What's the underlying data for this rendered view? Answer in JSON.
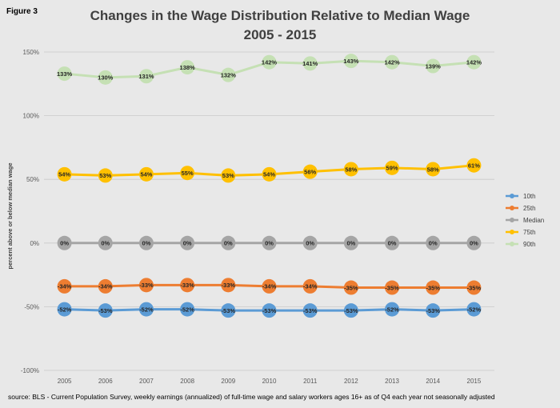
{
  "figure_label": "Figure 3",
  "source": "source: BLS - Current Population Survey, weekly earnings (annualized) of  full-time wage and salary workers ages 16+ as of Q4 each year not seasonally adjusted",
  "chart_data": {
    "type": "line",
    "title": "Changes in the Wage Distribution Relative to Median Wage",
    "subtitle": "2005 - 2015",
    "xlabel": "",
    "ylabel": "percent above or below median wage",
    "ylim": [
      -100,
      150
    ],
    "yticks": [
      150,
      100,
      50,
      0,
      -50,
      -100
    ],
    "ytick_labels": [
      "150%",
      "100%",
      "50%",
      "0%",
      "-50%",
      "-100%"
    ],
    "categories": [
      "2005",
      "2006",
      "2007",
      "2008",
      "2009",
      "2010",
      "2011",
      "2012",
      "2013",
      "2014",
      "2015"
    ],
    "grid": true,
    "legend_position": "right",
    "series": [
      {
        "name": "10th",
        "color": "#5b9bd5",
        "values": [
          -52,
          -53,
          -52,
          -52,
          -53,
          -53,
          -53,
          -53,
          -52,
          -53,
          -52
        ],
        "labels": [
          "-52%",
          "-53%",
          "-52%",
          "-52%",
          "-53%",
          "-53%",
          "-53%",
          "-53%",
          "-52%",
          "-53%",
          "-52%"
        ]
      },
      {
        "name": "25th",
        "color": "#ed7d31",
        "values": [
          -34,
          -34,
          -33,
          -33,
          -33,
          -34,
          -34,
          -35,
          -35,
          -35,
          -35
        ],
        "labels": [
          "-34%",
          "-34%",
          "-33%",
          "-33%",
          "-33%",
          "-34%",
          "-34%",
          "-35%",
          "-35%",
          "-35%",
          "-35%"
        ]
      },
      {
        "name": "Median",
        "color": "#a5a5a5",
        "values": [
          0,
          0,
          0,
          0,
          0,
          0,
          0,
          0,
          0,
          0,
          0
        ],
        "labels": [
          "0%",
          "0%",
          "0%",
          "0%",
          "0%",
          "0%",
          "0%",
          "0%",
          "0%",
          "0%",
          "0%"
        ]
      },
      {
        "name": "75th",
        "color": "#ffc000",
        "values": [
          54,
          53,
          54,
          55,
          53,
          54,
          56,
          58,
          59,
          58,
          61
        ],
        "labels": [
          "54%",
          "53%",
          "54%",
          "55%",
          "53%",
          "54%",
          "56%",
          "58%",
          "59%",
          "58%",
          "61%"
        ]
      },
      {
        "name": "90th",
        "color": "#c5e0b4",
        "values": [
          133,
          130,
          131,
          138,
          132,
          142,
          141,
          143,
          142,
          139,
          142
        ],
        "labels": [
          "133%",
          "130%",
          "131%",
          "138%",
          "132%",
          "142%",
          "141%",
          "143%",
          "142%",
          "139%",
          "142%"
        ]
      }
    ]
  }
}
